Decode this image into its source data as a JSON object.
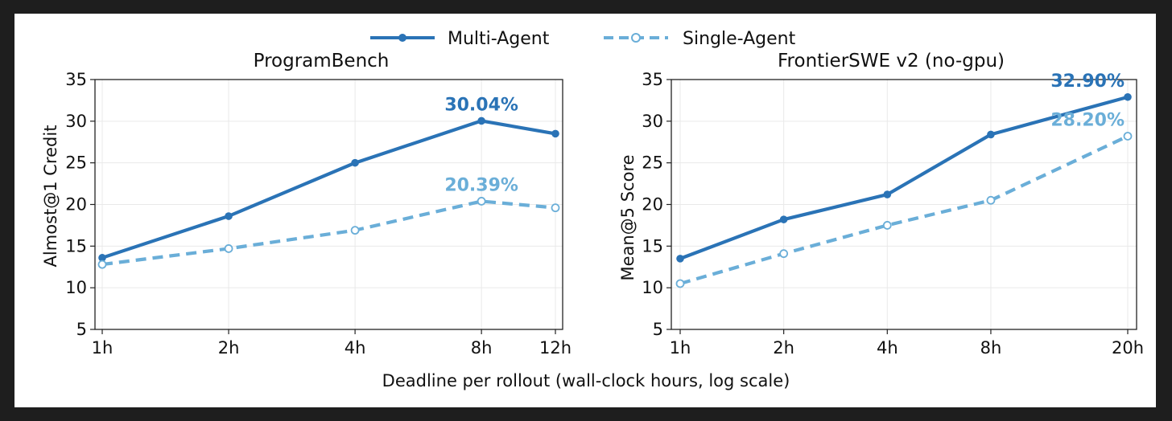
{
  "colors": {
    "multi_agent": "#2a73b6",
    "single_agent": "#6aaed8"
  },
  "legend": {
    "multi_agent_label": "Multi-Agent",
    "single_agent_label": "Single-Agent",
    "placement": "top-center"
  },
  "shared_xlabel": "Deadline per rollout (wall-clock hours, log scale)",
  "chart_data": [
    {
      "type": "line",
      "title": "ProgramBench",
      "ylabel": "Almost@1 Credit",
      "xscale": "log",
      "x": [
        1,
        2,
        4,
        8,
        12
      ],
      "x_tick_labels": [
        "1h",
        "2h",
        "4h",
        "8h",
        "12h"
      ],
      "ylim": [
        5,
        35
      ],
      "y_ticks": [
        5,
        10,
        15,
        20,
        25,
        30,
        35
      ],
      "grid": true,
      "series": [
        {
          "name": "Multi-Agent",
          "style": "solid",
          "marker": "filled-circle",
          "values": [
            13.6,
            18.6,
            25.0,
            30.04,
            28.5
          ]
        },
        {
          "name": "Single-Agent",
          "style": "dashed",
          "marker": "open-circle",
          "values": [
            12.8,
            14.7,
            16.9,
            20.39,
            19.6
          ]
        }
      ],
      "annotations": [
        {
          "text": "30.04%",
          "series": "Multi-Agent",
          "x": 8
        },
        {
          "text": "20.39%",
          "series": "Single-Agent",
          "x": 8
        }
      ]
    },
    {
      "type": "line",
      "title": "FrontierSWE v2 (no-gpu)",
      "ylabel": "Mean@5 Score",
      "xscale": "log",
      "x": [
        1,
        2,
        4,
        8,
        20
      ],
      "x_tick_labels": [
        "1h",
        "2h",
        "4h",
        "8h",
        "20h"
      ],
      "ylim": [
        5,
        35
      ],
      "y_ticks": [
        5,
        10,
        15,
        20,
        25,
        30,
        35
      ],
      "grid": true,
      "series": [
        {
          "name": "Multi-Agent",
          "style": "solid",
          "marker": "filled-circle",
          "values": [
            13.5,
            18.2,
            21.2,
            28.4,
            32.9
          ]
        },
        {
          "name": "Single-Agent",
          "style": "dashed",
          "marker": "open-circle",
          "values": [
            10.5,
            14.1,
            17.5,
            20.5,
            28.2
          ]
        }
      ],
      "annotations": [
        {
          "text": "32.90%",
          "series": "Multi-Agent",
          "x": 20
        },
        {
          "text": "28.20%",
          "series": "Single-Agent",
          "x": 20
        }
      ]
    }
  ]
}
